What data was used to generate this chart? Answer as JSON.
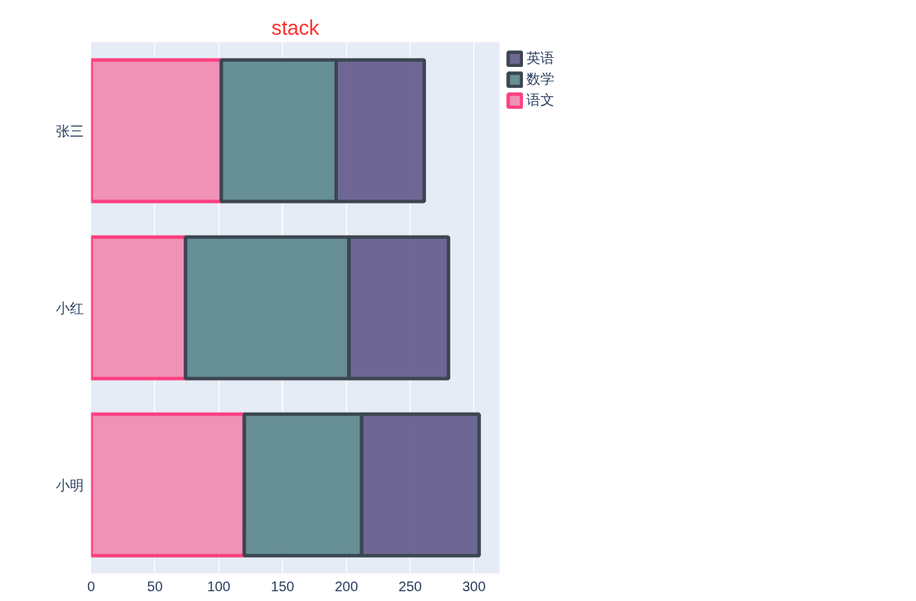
{
  "chart_data": {
    "type": "bar",
    "orientation": "horizontal",
    "stacked": true,
    "title": "stack",
    "categories": [
      "张三",
      "小红",
      "小明"
    ],
    "series": [
      {
        "name": "语文",
        "color": "#f08cb2",
        "values": [
          102,
          74,
          120
        ]
      },
      {
        "name": "数学",
        "color": "#5f8a90",
        "values": [
          90,
          128,
          92
        ]
      },
      {
        "name": "英语",
        "color": "#67608f",
        "values": [
          69,
          78,
          92
        ]
      }
    ],
    "xlim": [
      0,
      320
    ],
    "xticks": [
      0,
      50,
      100,
      150,
      200,
      250,
      300
    ],
    "grid": "x",
    "legend": "top right"
  }
}
